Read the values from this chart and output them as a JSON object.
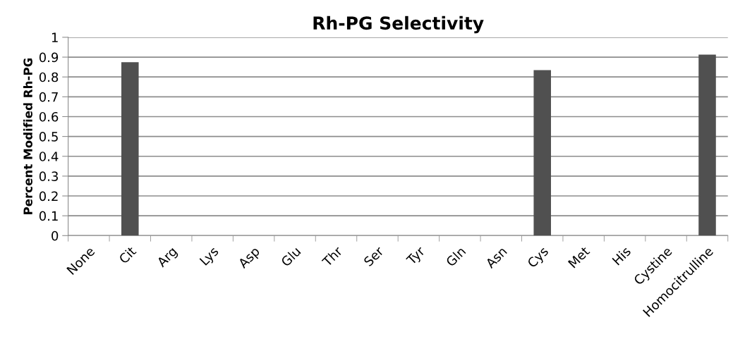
{
  "chart_data": {
    "type": "bar",
    "title": "Rh-PG Selectivity",
    "ylabel": "Percent Modified Rh-PG",
    "categories": [
      "None",
      "Cit",
      "Arg",
      "Lys",
      "Asp",
      "Glu",
      "Thr",
      "Ser",
      "Tyr",
      "Gln",
      "Asn",
      "Cys",
      "Met",
      "His",
      "Cystine",
      "Homocitrulline"
    ],
    "values": [
      0,
      0.874,
      0,
      0,
      0,
      0,
      0,
      0,
      0,
      0,
      0,
      0.834,
      0,
      0,
      0,
      0.913
    ],
    "color": "#505050",
    "ylim": [
      0,
      1
    ],
    "yticks": [
      0,
      0.1,
      0.2,
      0.3,
      0.4,
      0.5,
      0.6,
      0.7,
      0.8,
      0.9,
      1
    ],
    "grid": "y"
  }
}
